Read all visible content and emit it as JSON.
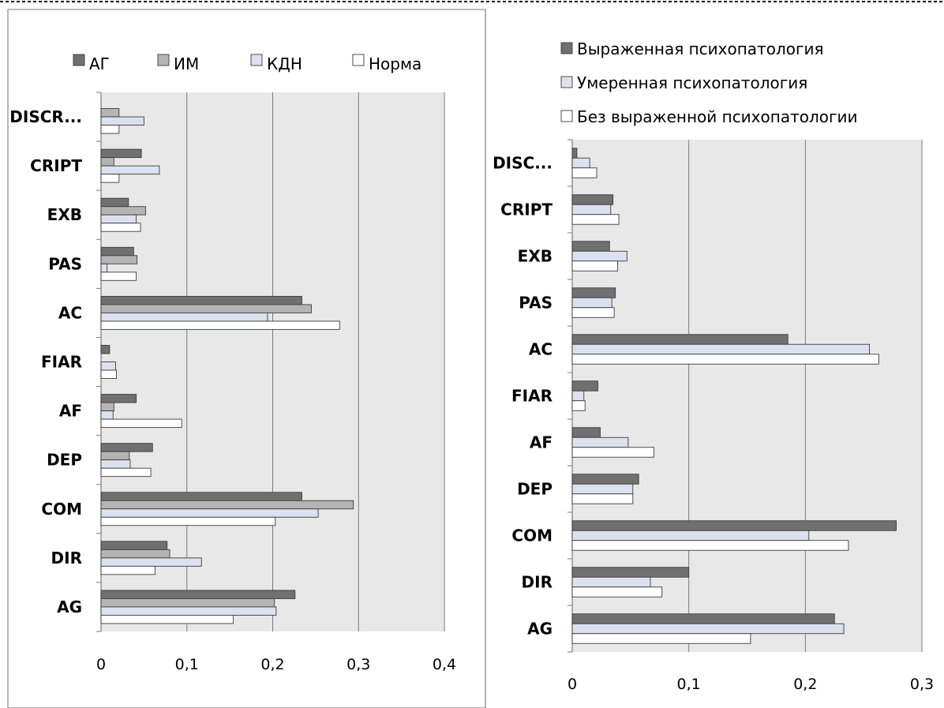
{
  "chart_data": [
    {
      "type": "bar",
      "orientation": "horizontal",
      "categories": [
        "AG",
        "DIR",
        "COM",
        "DEP",
        "AF",
        "FIAR",
        "AC",
        "PAS",
        "EXB",
        "CRIPT",
        "DISCR..."
      ],
      "x_ticks": [
        "0",
        "0,1",
        "0,2",
        "0,3",
        "0,4"
      ],
      "xlim": [
        0,
        0.4
      ],
      "grid": "vertical",
      "legend_position": "top",
      "series": [
        {
          "name": "АГ",
          "color": "#707070",
          "values": [
            0.226,
            0.077,
            0.234,
            0.06,
            0.041,
            0.01,
            0.234,
            0.038,
            0.032,
            0.047,
            0.0
          ]
        },
        {
          "name": "ИМ",
          "color": "#b4b4b4",
          "values": [
            0.202,
            0.08,
            0.294,
            0.033,
            0.015,
            0.0,
            0.245,
            0.042,
            0.052,
            0.015,
            0.021
          ]
        },
        {
          "name": "КДН",
          "color": "#dbe1ef",
          "values": [
            0.204,
            0.117,
            0.253,
            0.034,
            0.014,
            0.017,
            0.194,
            0.007,
            0.041,
            0.068,
            0.05
          ]
        },
        {
          "name": "Норма",
          "color": "#ffffff",
          "values": [
            0.154,
            0.063,
            0.203,
            0.058,
            0.094,
            0.018,
            0.278,
            0.041,
            0.046,
            0.021,
            0.021
          ]
        }
      ]
    },
    {
      "type": "bar",
      "orientation": "horizontal",
      "categories": [
        "AG",
        "DIR",
        "COM",
        "DEP",
        "AF",
        "FIAR",
        "AC",
        "PAS",
        "EXB",
        "CRIPT",
        "DISC..."
      ],
      "x_ticks": [
        "0",
        "0,1",
        "0,2",
        "0,3"
      ],
      "xlim": [
        0,
        0.3
      ],
      "grid": "vertical",
      "legend_position": "top",
      "series": [
        {
          "name": "Выраженная психопатология",
          "color": "#707070",
          "values": [
            0.225,
            0.1,
            0.278,
            0.057,
            0.024,
            0.022,
            0.185,
            0.037,
            0.032,
            0.035,
            0.004
          ]
        },
        {
          "name": "Умеренная психопатология",
          "color": "#dbe1ef",
          "values": [
            0.233,
            0.067,
            0.203,
            0.052,
            0.048,
            0.01,
            0.255,
            0.034,
            0.047,
            0.033,
            0.015
          ]
        },
        {
          "name": "Без выраженной психопатологии",
          "color": "#ffffff",
          "values": [
            0.153,
            0.077,
            0.237,
            0.052,
            0.07,
            0.011,
            0.263,
            0.036,
            0.039,
            0.04,
            0.021
          ]
        }
      ]
    }
  ]
}
